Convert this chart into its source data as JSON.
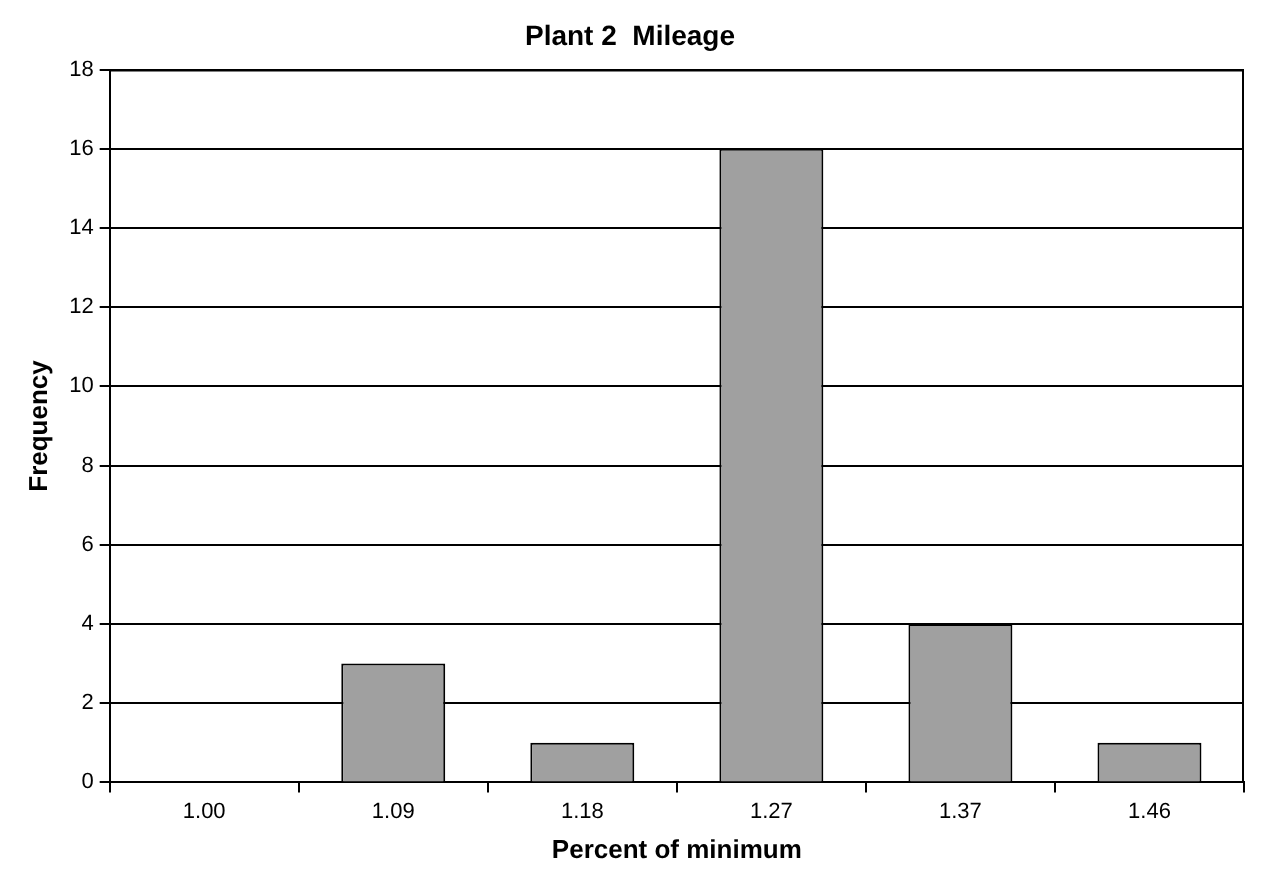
{
  "chart_data": {
    "type": "bar",
    "title": "Plant 2  Mileage",
    "xlabel": "Percent of minimum",
    "ylabel": "Frequency",
    "categories": [
      "1.00",
      "1.09",
      "1.18",
      "1.27",
      "1.37",
      "1.46"
    ],
    "values": [
      0,
      3,
      1,
      16,
      4,
      1
    ],
    "color": "#a0a0a0",
    "ylim": [
      0,
      18
    ],
    "yticks": [
      0,
      2,
      4,
      6,
      8,
      10,
      12,
      14,
      16,
      18
    ],
    "grid": "y",
    "legend": false
  }
}
